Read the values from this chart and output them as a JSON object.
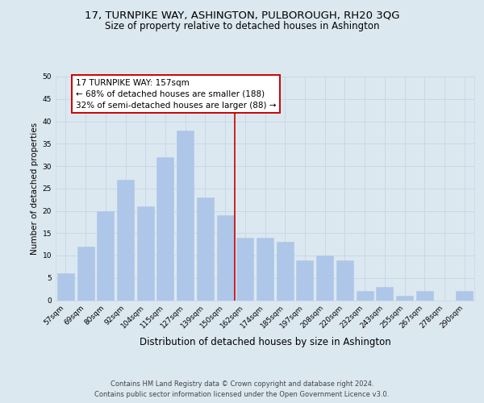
{
  "title": "17, TURNPIKE WAY, ASHINGTON, PULBOROUGH, RH20 3QG",
  "subtitle": "Size of property relative to detached houses in Ashington",
  "xlabel": "Distribution of detached houses by size in Ashington",
  "ylabel": "Number of detached properties",
  "bar_labels": [
    "57sqm",
    "69sqm",
    "80sqm",
    "92sqm",
    "104sqm",
    "115sqm",
    "127sqm",
    "139sqm",
    "150sqm",
    "162sqm",
    "174sqm",
    "185sqm",
    "197sqm",
    "208sqm",
    "220sqm",
    "232sqm",
    "243sqm",
    "255sqm",
    "267sqm",
    "278sqm",
    "290sqm"
  ],
  "bar_values": [
    6,
    12,
    20,
    27,
    21,
    32,
    38,
    23,
    19,
    14,
    14,
    13,
    9,
    10,
    9,
    2,
    3,
    1,
    2,
    0,
    2
  ],
  "bar_color": "#aec6e8",
  "bar_edge_color": "#aec6e8",
  "vline_color": "#cc0000",
  "annotation_line0": "17 TURNPIKE WAY: 157sqm",
  "annotation_line1": "← 68% of detached houses are smaller (188)",
  "annotation_line2": "32% of semi-detached houses are larger (88) →",
  "annotation_box_color": "#ffffff",
  "annotation_box_edge": "#cc0000",
  "ylim": [
    0,
    50
  ],
  "yticks": [
    0,
    5,
    10,
    15,
    20,
    25,
    30,
    35,
    40,
    45,
    50
  ],
  "grid_color": "#c8d8e8",
  "background_color": "#dce8f0",
  "footer_line1": "Contains HM Land Registry data © Crown copyright and database right 2024.",
  "footer_line2": "Contains public sector information licensed under the Open Government Licence v3.0.",
  "title_fontsize": 9.5,
  "subtitle_fontsize": 8.5,
  "xlabel_fontsize": 8.5,
  "ylabel_fontsize": 7.5,
  "tick_fontsize": 6.5,
  "annotation_fontsize": 7.5,
  "footer_fontsize": 6
}
